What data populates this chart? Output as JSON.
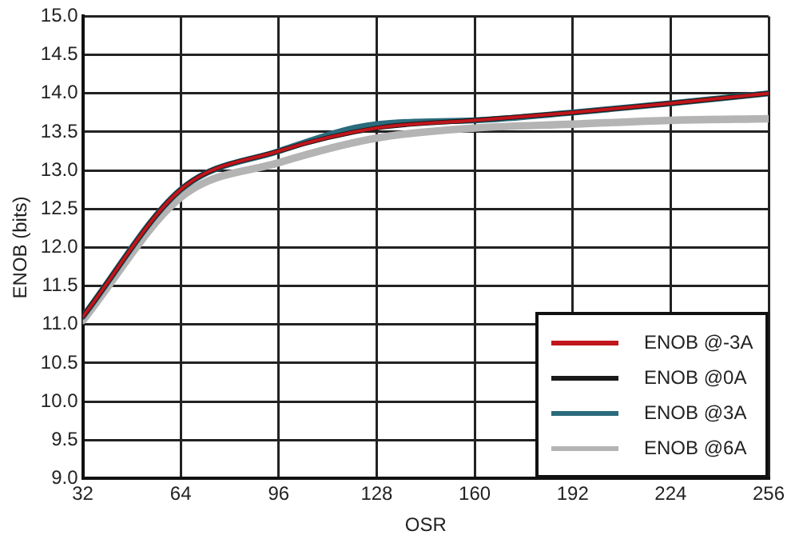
{
  "chart_data": {
    "type": "line",
    "xlabel": "OSR",
    "ylabel": "ENOB (bits)",
    "x": [
      32,
      64,
      96,
      128,
      160,
      192,
      224,
      256
    ],
    "series": [
      {
        "name": "ENOB @-3A",
        "color": "#c0161c",
        "values": [
          11.1,
          12.75,
          13.25,
          13.55,
          13.65,
          13.75,
          13.87,
          14.0
        ]
      },
      {
        "name": "ENOB @0A",
        "color": "#1a1a1a",
        "values": [
          11.1,
          12.75,
          13.25,
          13.55,
          13.65,
          13.75,
          13.87,
          14.0
        ]
      },
      {
        "name": "ENOB @3A",
        "color": "#2a6b7c",
        "values": [
          11.1,
          12.75,
          13.25,
          13.6,
          13.65,
          13.75,
          13.87,
          14.0
        ]
      },
      {
        "name": "ENOB @6A",
        "color": "#b4b4b4",
        "values": [
          11.05,
          12.65,
          13.1,
          13.42,
          13.55,
          13.6,
          13.65,
          13.67
        ]
      }
    ],
    "xlim": [
      32,
      256
    ],
    "xticks": [
      32,
      64,
      96,
      128,
      160,
      192,
      224,
      256
    ],
    "ylim": [
      9,
      15
    ],
    "yticks": [
      {
        "value": 9,
        "label": "9.0"
      },
      {
        "value": 9.5,
        "label": "9.5"
      },
      {
        "value": 10,
        "label": "10.0"
      },
      {
        "value": 10.5,
        "label": "10.5"
      },
      {
        "value": 11,
        "label": "11.0"
      },
      {
        "value": 11.5,
        "label": "11.5"
      },
      {
        "value": 12,
        "label": "12.0"
      },
      {
        "value": 12.5,
        "label": "12.5"
      },
      {
        "value": 13,
        "label": "13.0"
      },
      {
        "value": 13.5,
        "label": "13.5"
      },
      {
        "value": 14,
        "label": "14.0"
      },
      {
        "value": 14.5,
        "label": "14.5"
      },
      {
        "value": 15,
        "label": "15.0"
      }
    ],
    "grid": true,
    "legend": "bottom right",
    "marker": "none",
    "line_style": "solid"
  }
}
